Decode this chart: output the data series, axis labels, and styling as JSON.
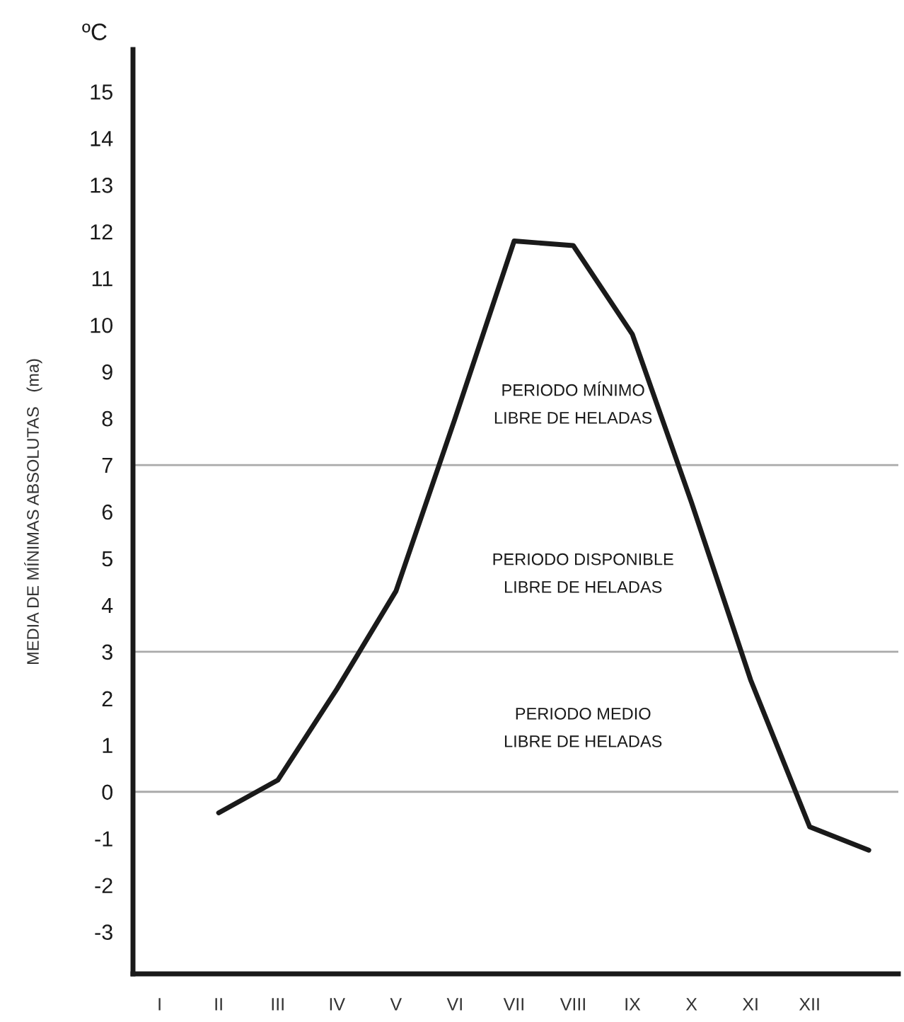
{
  "chart_data": {
    "type": "line",
    "ylabel": "MEDIA DE MÍNIMAS ABSOLUTAS   (ma)",
    "annotations": [
      "ºC",
      "PERIODO MÍNIMO\nLIBRE DE HELADAS",
      "PERIODO DISPONIBLE\nLIBRE DE HELADAS",
      "PERIODO MEDIO\nLIBRE DE HELADAS"
    ],
    "categories": [
      "I",
      "II",
      "III",
      "IV",
      "V",
      "VI",
      "VII",
      "VIII",
      "IX",
      "X",
      "XI",
      "XII",
      null
    ],
    "series": [
      {
        "color": "#1a1a1a",
        "values": [
          null,
          -0.45,
          0.25,
          2.2,
          4.3,
          8.0,
          11.8,
          11.7,
          9.8,
          6.2,
          2.4,
          -0.75,
          -1.25
        ]
      }
    ],
    "ylim": [
      -3.9,
      15.9
    ],
    "yticks": [
      -3,
      -2,
      -1,
      0,
      1,
      2,
      3,
      4,
      5,
      6,
      7,
      8,
      9,
      10,
      11,
      12,
      13,
      14,
      15
    ],
    "ref_lines": [
      {
        "axis": "y",
        "value": 0,
        "color": "#aaaaaa"
      },
      {
        "axis": "y",
        "value": 3,
        "color": "#aaaaaa"
      },
      {
        "axis": "y",
        "value": 7,
        "color": "#aaaaaa"
      }
    ],
    "grid": false,
    "legend": false,
    "marker": "none",
    "line_style": "solid"
  }
}
